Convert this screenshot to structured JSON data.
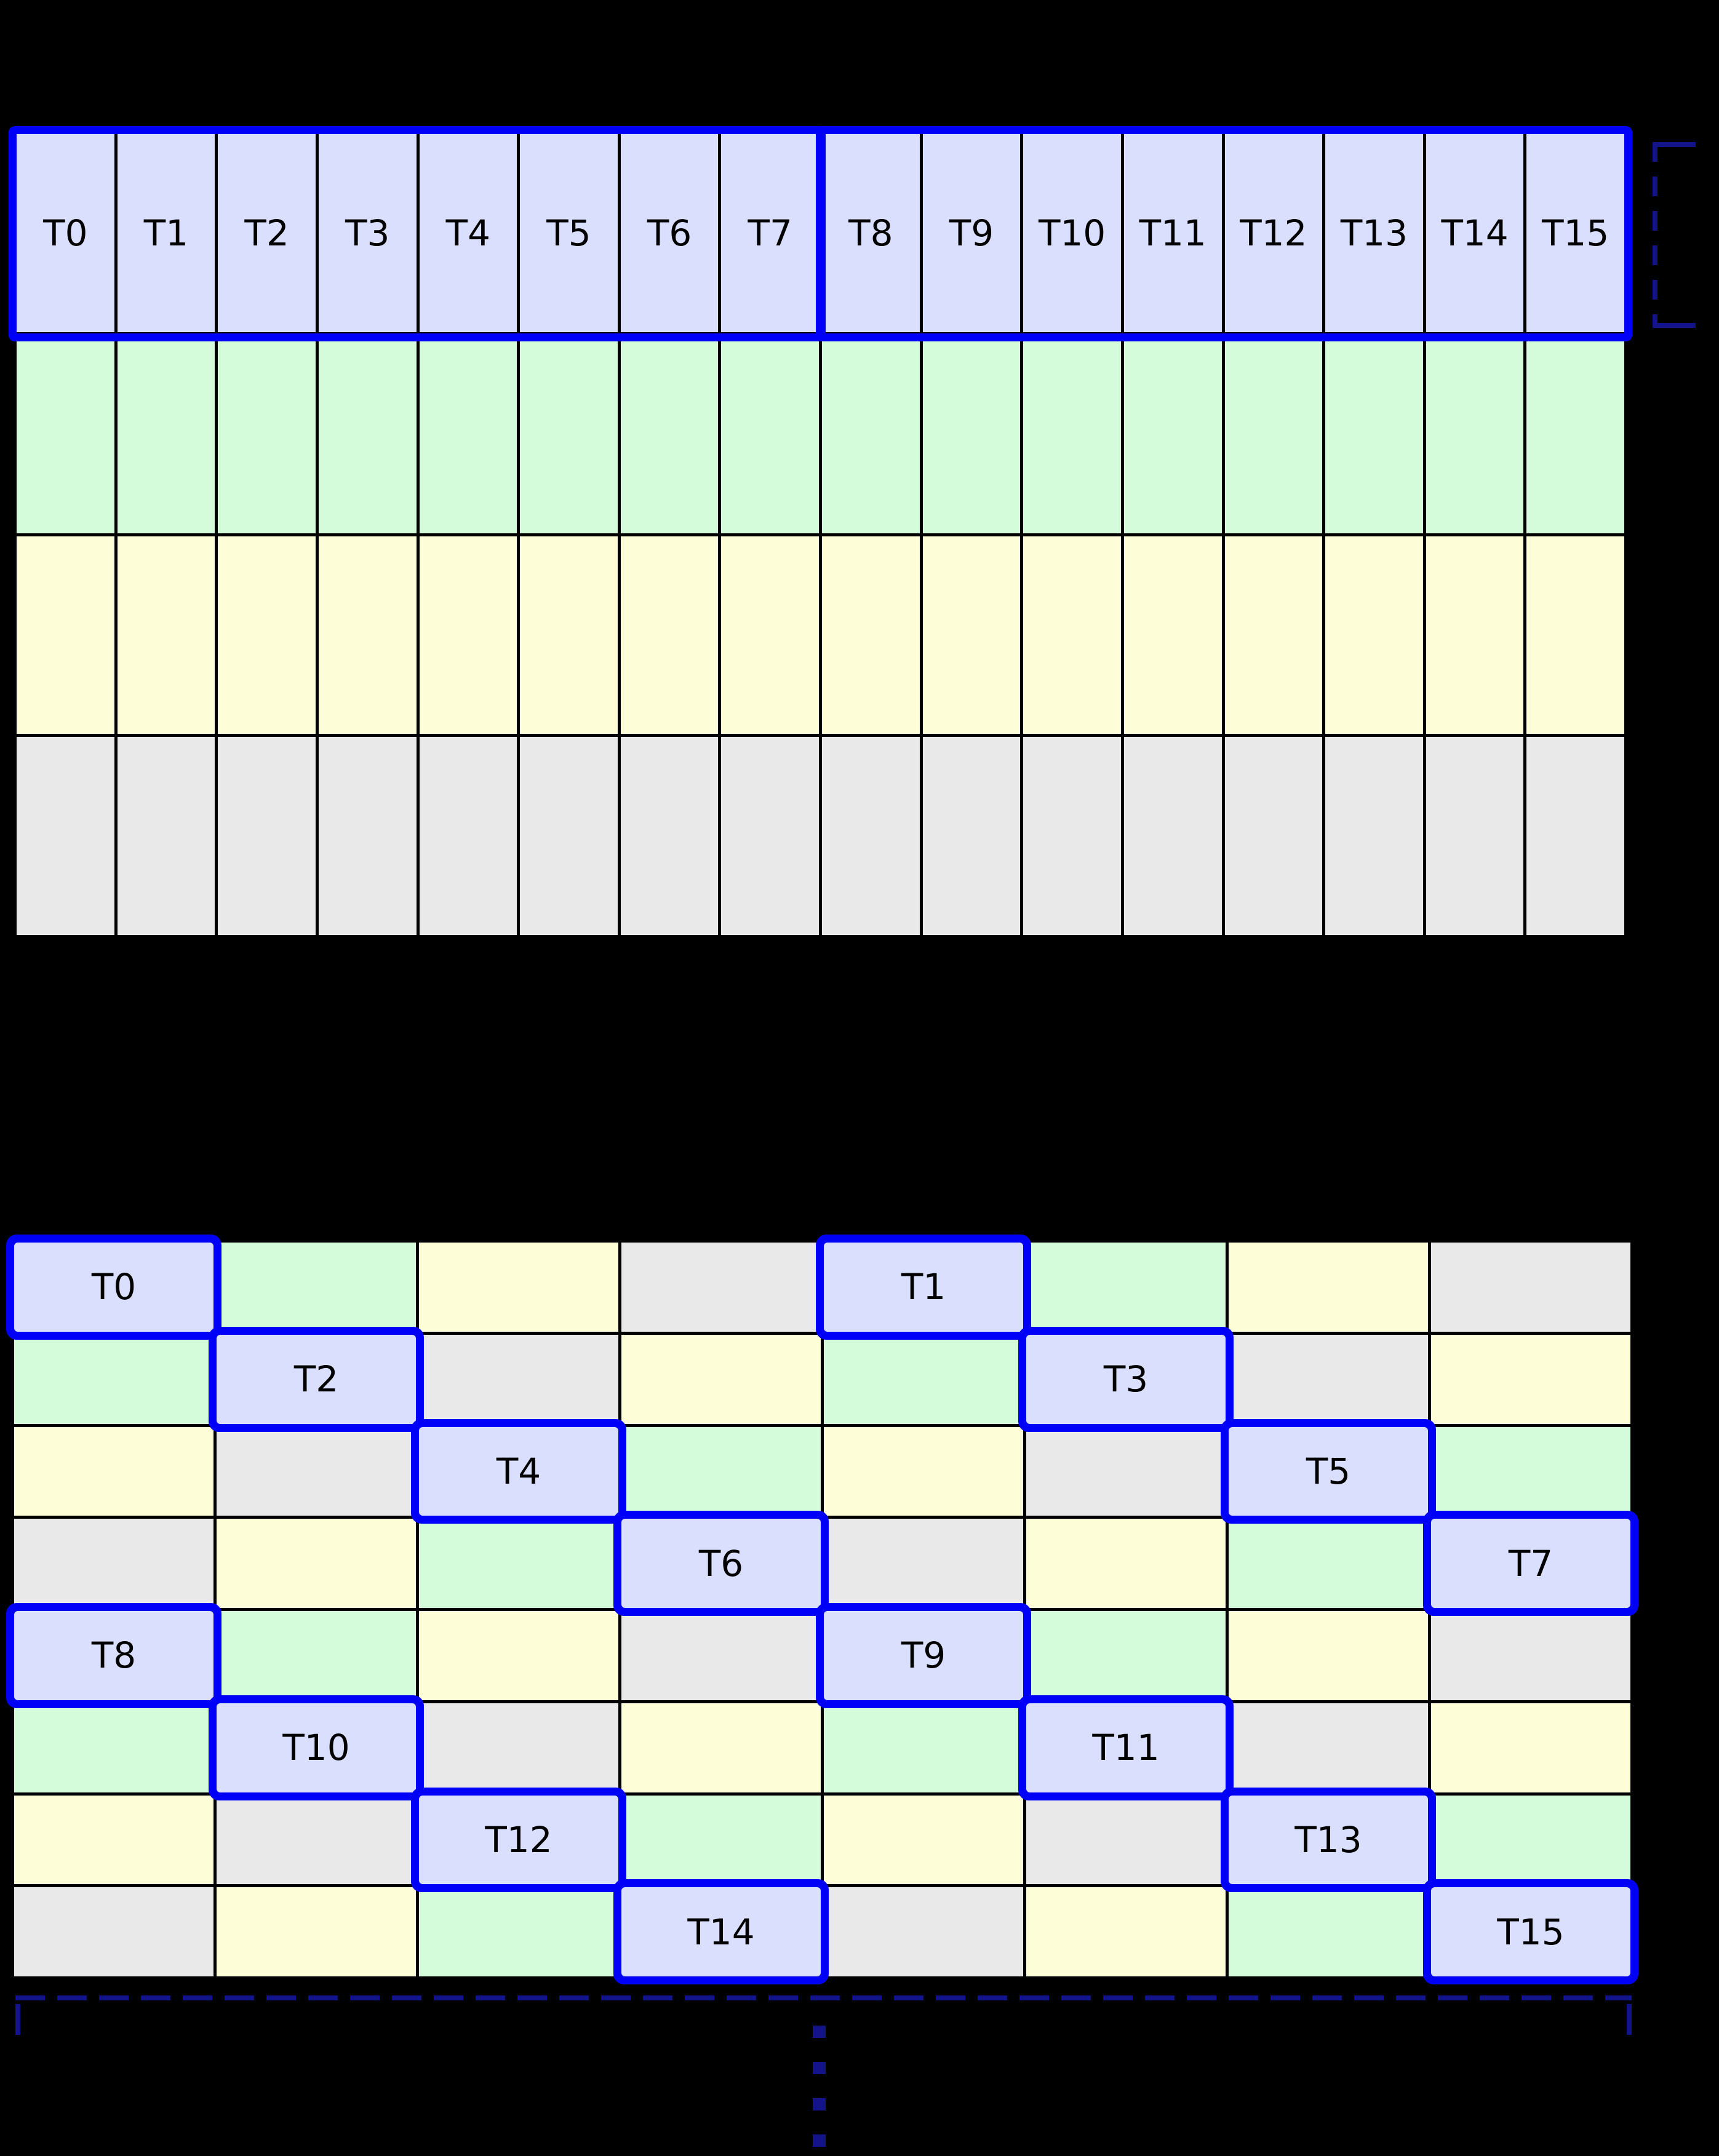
{
  "figure": {
    "background": "#000000",
    "colors": {
      "thread_fill": "#d9dffc",
      "green_fill": "#d4fcda",
      "yellow_fill": "#fdfdd7",
      "gray_fill": "#e9e9e9",
      "grid_line": "#000000",
      "highlight_border": "#0000f8",
      "annotation_color": "#13138a",
      "label_color": "#000000"
    },
    "top_grid": {
      "columns": 16,
      "row_types": [
        "threads",
        "green",
        "yellow",
        "gray"
      ],
      "thread_labels": [
        "T0",
        "T1",
        "T2",
        "T3",
        "T4",
        "T5",
        "T6",
        "T7",
        "T8",
        "T9",
        "T10",
        "T11",
        "T12",
        "T13",
        "T14",
        "T15"
      ],
      "warp_groups": [
        [
          0,
          7
        ],
        [
          8,
          15
        ]
      ]
    },
    "bottom_grid": {
      "columns": 8,
      "rows": 8,
      "cells": [
        [
          "T0",
          "green",
          "yellow",
          "gray",
          "T1",
          "green",
          "yellow",
          "gray"
        ],
        [
          "green",
          "T2",
          "gray",
          "yellow",
          "green",
          "T3",
          "gray",
          "yellow"
        ],
        [
          "yellow",
          "gray",
          "T4",
          "green",
          "yellow",
          "gray",
          "T5",
          "green"
        ],
        [
          "gray",
          "yellow",
          "green",
          "T6",
          "gray",
          "yellow",
          "green",
          "T7"
        ],
        [
          "T8",
          "green",
          "yellow",
          "gray",
          "T9",
          "green",
          "yellow",
          "gray"
        ],
        [
          "green",
          "T10",
          "gray",
          "yellow",
          "green",
          "T11",
          "gray",
          "yellow"
        ],
        [
          "yellow",
          "gray",
          "T12",
          "green",
          "yellow",
          "gray",
          "T13",
          "green"
        ],
        [
          "gray",
          "yellow",
          "green",
          "T14",
          "gray",
          "yellow",
          "green",
          "T15"
        ]
      ]
    },
    "annotations": {
      "right_bracket_style": "dashed",
      "bottom_bracket_style": "dashed",
      "continuation_dots_count": 4
    }
  }
}
